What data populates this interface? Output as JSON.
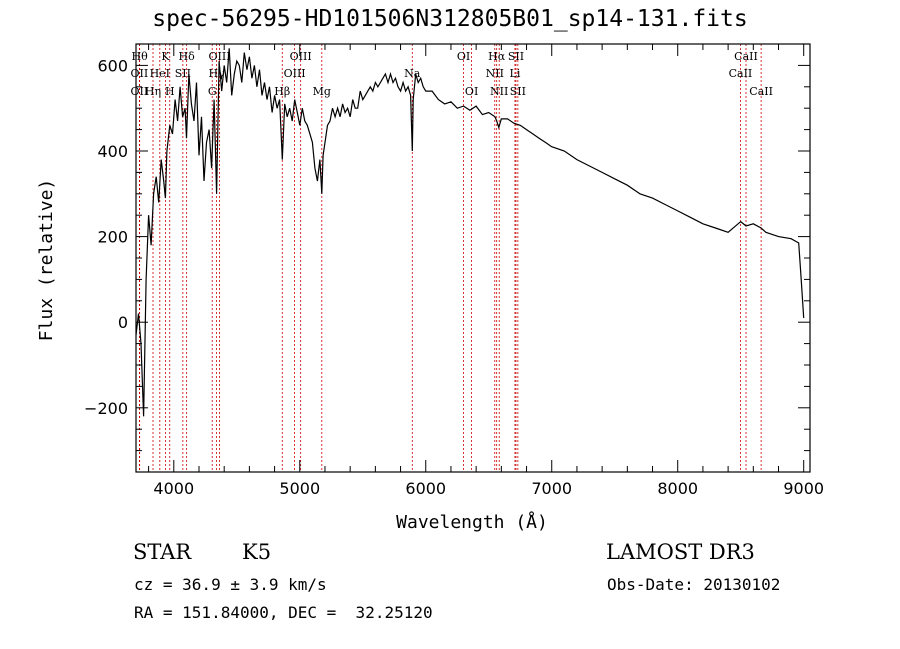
{
  "header": {
    "title": "spec-56295-HD101506N312805B01_sp14-131.fits"
  },
  "info": {
    "class": "STAR",
    "subclass": "K5",
    "survey": "LAMOST DR3",
    "cz": "cz = 36.9 ± 3.9 km/s",
    "obs_date": "Obs-Date: 20130102",
    "radec": "RA = 151.84000, DEC =  32.25120"
  },
  "chart_data": {
    "type": "line",
    "title": "spec-56295-HD101506N312805B01_sp14-131.fits",
    "xlabel": "Wavelength (Å)",
    "ylabel": "Flux (relative)",
    "xlim": [
      3700,
      9050
    ],
    "ylim": [
      -350,
      650
    ],
    "xticks": [
      4000,
      5000,
      6000,
      7000,
      8000,
      9000
    ],
    "yticks": [
      -200,
      0,
      200,
      400,
      600
    ],
    "xtick_labels": [
      "4000",
      "5000",
      "6000",
      "7000",
      "8000",
      "9000"
    ],
    "ytick_labels": [
      "−200",
      "0",
      "200",
      "400",
      "600"
    ],
    "series": [
      {
        "name": "flux",
        "x": [
          3700,
          3720,
          3740,
          3760,
          3780,
          3800,
          3820,
          3840,
          3860,
          3880,
          3900,
          3920,
          3933,
          3945,
          3968,
          3990,
          4010,
          4030,
          4050,
          4070,
          4090,
          4101,
          4120,
          4140,
          4160,
          4180,
          4200,
          4220,
          4240,
          4260,
          4280,
          4300,
          4320,
          4340,
          4360,
          4380,
          4400,
          4420,
          4440,
          4460,
          4480,
          4500,
          4520,
          4540,
          4560,
          4580,
          4600,
          4620,
          4640,
          4660,
          4680,
          4700,
          4720,
          4740,
          4760,
          4780,
          4800,
          4820,
          4840,
          4861,
          4880,
          4900,
          4920,
          4940,
          4960,
          4980,
          5000,
          5020,
          5040,
          5060,
          5080,
          5100,
          5120,
          5140,
          5160,
          5175,
          5185,
          5200,
          5220,
          5240,
          5260,
          5280,
          5300,
          5320,
          5340,
          5360,
          5380,
          5400,
          5420,
          5440,
          5460,
          5480,
          5500,
          5520,
          5540,
          5560,
          5580,
          5600,
          5620,
          5640,
          5660,
          5680,
          5700,
          5720,
          5740,
          5760,
          5780,
          5800,
          5820,
          5840,
          5860,
          5880,
          5893,
          5900,
          5920,
          5940,
          5960,
          5980,
          6000,
          6050,
          6100,
          6150,
          6200,
          6250,
          6300,
          6350,
          6400,
          6450,
          6500,
          6550,
          6563,
          6580,
          6600,
          6650,
          6700,
          6750,
          6800,
          6850,
          6900,
          6950,
          7000,
          7100,
          7200,
          7300,
          7400,
          7500,
          7600,
          7700,
          7800,
          7900,
          8000,
          8100,
          8200,
          8300,
          8400,
          8500,
          8542,
          8600,
          8662,
          8700,
          8800,
          8900,
          8960,
          8980,
          9000
        ],
        "values": [
          -30,
          20,
          -50,
          -220,
          100,
          250,
          180,
          300,
          340,
          280,
          380,
          330,
          290,
          400,
          460,
          440,
          520,
          470,
          550,
          480,
          500,
          430,
          580,
          510,
          470,
          560,
          390,
          480,
          330,
          420,
          450,
          360,
          520,
          300,
          610,
          540,
          600,
          560,
          640,
          530,
          580,
          610,
          600,
          560,
          630,
          590,
          620,
          570,
          600,
          550,
          590,
          530,
          560,
          520,
          550,
          490,
          530,
          500,
          520,
          380,
          510,
          480,
          500,
          470,
          520,
          490,
          460,
          500,
          470,
          460,
          440,
          420,
          360,
          330,
          380,
          300,
          390,
          420,
          460,
          470,
          500,
          480,
          500,
          480,
          510,
          490,
          500,
          480,
          520,
          500,
          500,
          540,
          520,
          530,
          540,
          550,
          540,
          560,
          550,
          560,
          570,
          580,
          560,
          580,
          560,
          570,
          550,
          540,
          560,
          540,
          550,
          530,
          400,
          520,
          580,
          560,
          570,
          550,
          540,
          540,
          520,
          510,
          515,
          500,
          505,
          495,
          505,
          485,
          490,
          480,
          470,
          455,
          475,
          475,
          465,
          460,
          450,
          440,
          430,
          420,
          410,
          400,
          380,
          365,
          350,
          335,
          320,
          300,
          290,
          275,
          260,
          245,
          230,
          220,
          210,
          235,
          225,
          230,
          220,
          210,
          200,
          195,
          185,
          100,
          10
        ]
      }
    ],
    "lines": [
      {
        "name": "Hδ",
        "wl": 3729,
        "label": "Hθ",
        "row": 0
      },
      {
        "name": "OII",
        "wl": 3727,
        "label": "OII",
        "row": 1
      },
      {
        "name": "OII2",
        "wl": 3727,
        "label": "OII",
        "row": 2
      },
      {
        "name": "Hη",
        "wl": 3835,
        "label": "Hη",
        "row": 2
      },
      {
        "name": "HeI",
        "wl": 3889,
        "label": "HeI",
        "row": 1
      },
      {
        "name": "K",
        "wl": 3934,
        "label": "K",
        "row": 0
      },
      {
        "name": "H",
        "wl": 3968,
        "label": "H",
        "row": 2
      },
      {
        "name": "SII",
        "wl": 4072,
        "label": "SII",
        "row": 1
      },
      {
        "name": "Hδ2",
        "wl": 4102,
        "label": "Hδ",
        "row": 0
      },
      {
        "name": "Hγ",
        "wl": 4340,
        "label": "Hγ",
        "row": 1
      },
      {
        "name": "G",
        "wl": 4305,
        "label": "G",
        "row": 2
      },
      {
        "name": "OIII1",
        "wl": 4363,
        "label": "OIII",
        "row": 0
      },
      {
        "name": "Hβ",
        "wl": 4861,
        "label": "Hβ",
        "row": 2
      },
      {
        "name": "OIII2",
        "wl": 4959,
        "label": "OIII",
        "row": 1
      },
      {
        "name": "OIII3",
        "wl": 5007,
        "label": "OIII",
        "row": 0
      },
      {
        "name": "Mg",
        "wl": 5175,
        "label": "Mg",
        "row": 2
      },
      {
        "name": "Na",
        "wl": 5893,
        "label": "Na",
        "row": 1
      },
      {
        "name": "OI1",
        "wl": 6300,
        "label": "OI",
        "row": 0
      },
      {
        "name": "OI2",
        "wl": 6364,
        "label": "OI",
        "row": 2
      },
      {
        "name": "NII1",
        "wl": 6548,
        "label": "NII",
        "row": 1
      },
      {
        "name": "Hα",
        "wl": 6563,
        "label": "Hα",
        "row": 0
      },
      {
        "name": "NII2",
        "wl": 6583,
        "label": "NII",
        "row": 2
      },
      {
        "name": "Li",
        "wl": 6708,
        "label": "Li",
        "row": 1
      },
      {
        "name": "SII1",
        "wl": 6716,
        "label": "SII",
        "row": 0
      },
      {
        "name": "SII2",
        "wl": 6731,
        "label": "SII",
        "row": 2
      },
      {
        "name": "CaII1",
        "wl": 8498,
        "label": "CaII",
        "row": 1
      },
      {
        "name": "CaII2",
        "wl": 8542,
        "label": "CaII",
        "row": 0
      },
      {
        "name": "CaII3",
        "wl": 8662,
        "label": "CaII",
        "row": 2
      }
    ]
  }
}
